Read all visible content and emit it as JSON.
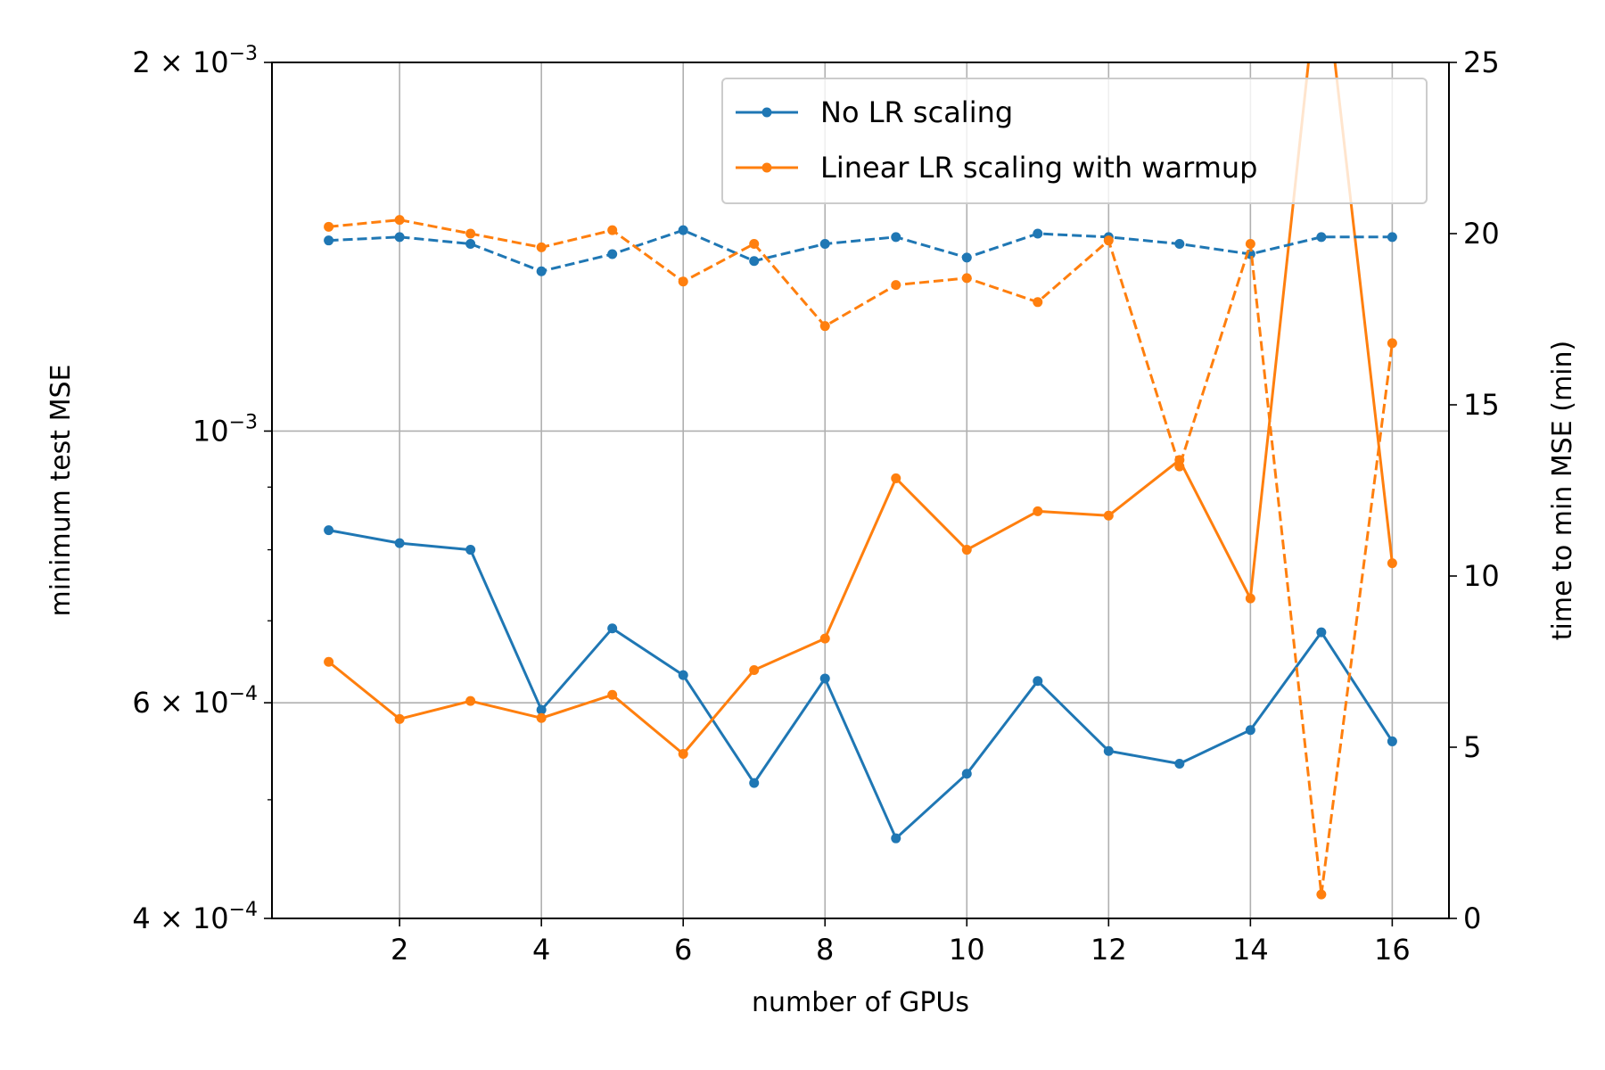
{
  "chart_data": {
    "type": "line",
    "xlabel": "number of GPUs",
    "ylabel_left": "minimum test MSE",
    "ylabel_right": "time to min MSE (min)",
    "x": [
      1,
      2,
      3,
      4,
      5,
      6,
      7,
      8,
      9,
      10,
      11,
      12,
      13,
      14,
      15,
      16
    ],
    "x_ticks": [
      2,
      4,
      6,
      8,
      10,
      12,
      14,
      16
    ],
    "x_tick_labels": [
      "2",
      "4",
      "6",
      "8",
      "10",
      "12",
      "14",
      "16"
    ],
    "xlim": [
      0.2,
      16.8
    ],
    "left_axis": {
      "scale": "log",
      "ylim": [
        0.0004,
        0.002
      ],
      "major_ticks": [
        {
          "value": 0.002,
          "base": "2 × 10",
          "exp": "−3"
        },
        {
          "value": 0.001,
          "base": "10",
          "exp": "−3"
        },
        {
          "value": 0.0006,
          "base": "6 × 10",
          "exp": "−4"
        },
        {
          "value": 0.0004,
          "base": "4 × 10",
          "exp": "−4"
        }
      ],
      "minor_ticks": [
        0.0005,
        0.0007,
        0.0008,
        0.0009
      ]
    },
    "right_axis": {
      "scale": "linear",
      "ylim": [
        0,
        25
      ],
      "ticks": [
        0,
        5,
        10,
        15,
        20,
        25
      ],
      "tick_labels": [
        "0",
        "5",
        "10",
        "15",
        "20",
        "25"
      ]
    },
    "grid": true,
    "legend": {
      "placement": "upper right",
      "entries": [
        "No LR scaling",
        "Linear LR scaling with warmup"
      ]
    },
    "series": [
      {
        "name": "No LR scaling",
        "color": "#1f77b4",
        "axis": "left",
        "style": "solid",
        "values": [
          0.00083,
          0.00081,
          0.0008,
          0.000592,
          0.00069,
          0.000632,
          0.000516,
          0.000628,
          0.000465,
          0.000525,
          0.000625,
          0.000548,
          0.000535,
          0.00057,
          0.000685,
          0.000558
        ]
      },
      {
        "name": "Linear LR scaling with warmup",
        "color": "#ff7f0e",
        "axis": "left",
        "style": "solid",
        "values": [
          0.000648,
          0.000582,
          0.000602,
          0.000583,
          0.000609,
          0.000545,
          0.000638,
          0.000677,
          0.000915,
          0.0008,
          0.00086,
          0.000853,
          0.000947,
          0.00073,
          0.0025,
          0.00078
        ]
      },
      {
        "name": "No LR scaling",
        "color": "#1f77b4",
        "axis": "right",
        "style": "dashed",
        "values": [
          19.8,
          19.9,
          19.7,
          18.9,
          19.4,
          20.1,
          19.2,
          19.7,
          19.9,
          19.3,
          20.0,
          19.9,
          19.7,
          19.4,
          19.9,
          19.9
        ]
      },
      {
        "name": "Linear LR scaling with warmup",
        "color": "#ff7f0e",
        "axis": "right",
        "style": "dashed",
        "values": [
          20.2,
          20.4,
          20.0,
          19.6,
          20.1,
          18.6,
          19.7,
          17.3,
          18.5,
          18.7,
          18.0,
          19.8,
          13.2,
          19.7,
          0.7,
          16.8
        ]
      }
    ]
  }
}
